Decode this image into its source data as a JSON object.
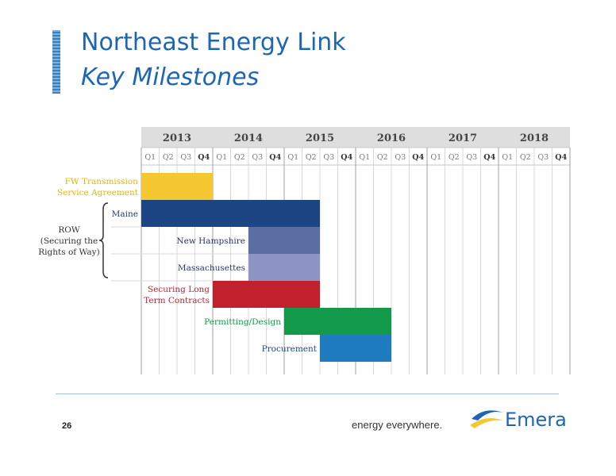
{
  "slide": {
    "title": "Northeast Energy Link",
    "subtitle": "Key Milestones",
    "page_number": "26",
    "tagline": "energy everywhere.",
    "logo_text": "Emera"
  },
  "colors": {
    "title_blue": "#1c66b3",
    "fw_yellow": "#f5c832",
    "maine_navy": "#1c4683",
    "nh_slate": "#5b6ea3",
    "ma_lavender": "#8d95c4",
    "contracts_red": "#c0212d",
    "permitting_green": "#129a4a",
    "procurement_blue": "#1f7bbf",
    "header_gray": "#dedede"
  },
  "chart_data": {
    "type": "gantt",
    "years": [
      "2013",
      "2014",
      "2015",
      "2016",
      "2017",
      "2018"
    ],
    "quarters": [
      "Q1",
      "Q2",
      "Q3",
      "Q4"
    ],
    "group_label": "ROW\n(Securing the\nRights of Way)",
    "tasks": [
      {
        "label": "FW Transmission\nService Agreement",
        "start": "2013 Q1",
        "end": "2013 Q4",
        "color": "#f5c832",
        "label_color": "#e8b500",
        "label_side": "left"
      },
      {
        "label": "Maine",
        "start": "2013 Q1",
        "end": "2015 Q2",
        "color": "#1c4683",
        "label_color": "#1c3f73",
        "label_side": "left",
        "group": "ROW"
      },
      {
        "label": "New Hampshire",
        "start": "2014 Q3",
        "end": "2015 Q2",
        "color": "#5b6ea3",
        "label_color": "#2a3560",
        "label_side": "left",
        "group": "ROW"
      },
      {
        "label": "Massachusettes",
        "start": "2014 Q3",
        "end": "2015 Q2",
        "color": "#8d95c4",
        "label_color": "#2a3560",
        "label_side": "left",
        "group": "ROW"
      },
      {
        "label": "Securing Long\nTerm Contracts",
        "start": "2014 Q1",
        "end": "2015 Q2",
        "color": "#c0212d",
        "label_color": "#c0212d",
        "label_side": "left"
      },
      {
        "label": "Permitting/Design",
        "start": "2015 Q1",
        "end": "2016 Q2",
        "color": "#129a4a",
        "label_color": "#129a4a",
        "label_side": "left"
      },
      {
        "label": "Procurement",
        "start": "2015 Q3",
        "end": "2016 Q2",
        "color": "#1f7bbf",
        "label_color": "#1c4683",
        "label_side": "left"
      }
    ]
  }
}
